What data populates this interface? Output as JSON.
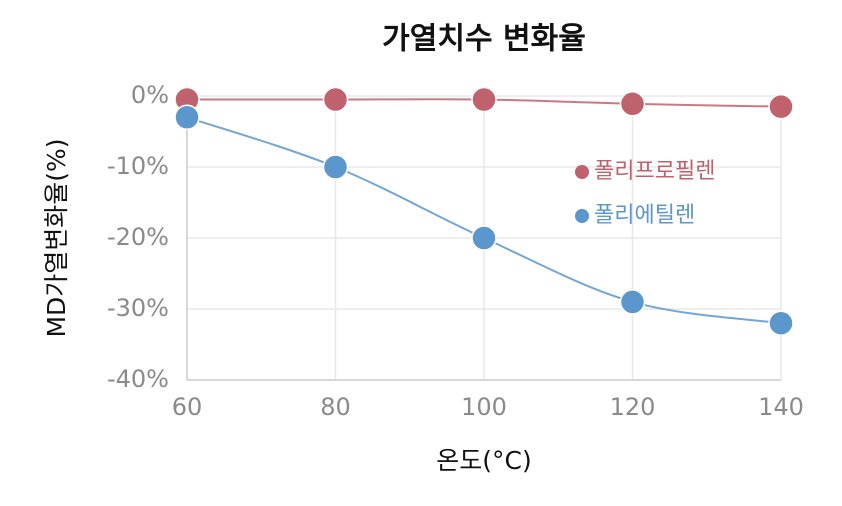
{
  "chart_data": {
    "type": "line",
    "title": "가열치수 변화율",
    "x_label": "온도(°C)",
    "y_label": "MD가열변화율(%)",
    "x": [
      60,
      80,
      100,
      120,
      140
    ],
    "series": [
      {
        "name": "폴리프로필렌",
        "color": "#c0616e",
        "values": [
          -0.5,
          -0.5,
          -0.5,
          -1.1,
          -1.5
        ]
      },
      {
        "name": "폴리에틸렌",
        "color": "#5b96cc",
        "values": [
          -3,
          -10,
          -20,
          -29,
          -32
        ]
      }
    ],
    "xlim": [
      60,
      140
    ],
    "xticks": [
      60,
      80,
      100,
      120,
      140
    ],
    "ylim": [
      -40,
      0
    ],
    "yticks": [
      {
        "value": 0,
        "label": "0%"
      },
      {
        "value": -10,
        "label": "-10%"
      },
      {
        "value": -20,
        "label": "-20%"
      },
      {
        "value": -30,
        "label": "-30%"
      },
      {
        "value": -40,
        "label": "-40%"
      }
    ],
    "grid": true,
    "legend": "right",
    "smooth": true
  }
}
